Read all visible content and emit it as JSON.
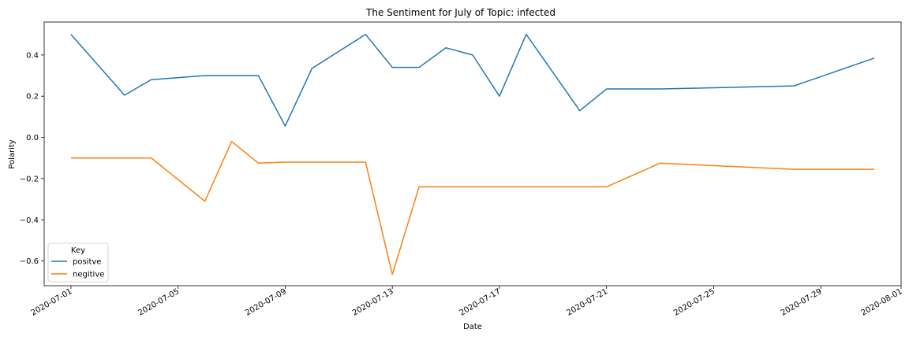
{
  "chart_data": {
    "type": "line",
    "title": "The Sentiment for July of Topic: infected",
    "xlabel": "Date",
    "ylabel": "Polarity",
    "xlim": [
      "2020-06-30",
      "2020-08-01"
    ],
    "ylim": [
      -0.72,
      0.56
    ],
    "x_ticks": [
      "2020-07-01",
      "2020-07-05",
      "2020-07-09",
      "2020-07-13",
      "2020-07-17",
      "2020-07-21",
      "2020-07-25",
      "2020-07-29",
      "2020-08-01"
    ],
    "y_ticks": [
      0.4,
      0.2,
      0.0,
      -0.2,
      -0.4,
      -0.6
    ],
    "y_tick_labels": [
      "0.4",
      "0.2",
      "0.0",
      "−0.2",
      "−0.4",
      "−0.6"
    ],
    "legend": {
      "title": "Key",
      "position": "lower-left"
    },
    "series": [
      {
        "name": "positve",
        "color": "#1f77b4",
        "points": [
          [
            "2020-07-01",
            0.5
          ],
          [
            "2020-07-03",
            0.205
          ],
          [
            "2020-07-04",
            0.28
          ],
          [
            "2020-07-06",
            0.3
          ],
          [
            "2020-07-07",
            0.3
          ],
          [
            "2020-07-08",
            0.3
          ],
          [
            "2020-07-09",
            0.055
          ],
          [
            "2020-07-10",
            0.335
          ],
          [
            "2020-07-12",
            0.5
          ],
          [
            "2020-07-13",
            0.34
          ],
          [
            "2020-07-14",
            0.34
          ],
          [
            "2020-07-15",
            0.435
          ],
          [
            "2020-07-16",
            0.4
          ],
          [
            "2020-07-17",
            0.2
          ],
          [
            "2020-07-18",
            0.5
          ],
          [
            "2020-07-20",
            0.13
          ],
          [
            "2020-07-21",
            0.235
          ],
          [
            "2020-07-23",
            0.235
          ],
          [
            "2020-07-28",
            0.25
          ],
          [
            "2020-07-31",
            0.385
          ]
        ]
      },
      {
        "name": "negitive",
        "color": "#ff7f0e",
        "points": [
          [
            "2020-07-01",
            -0.1
          ],
          [
            "2020-07-04",
            -0.1
          ],
          [
            "2020-07-06",
            -0.31
          ],
          [
            "2020-07-07",
            -0.02
          ],
          [
            "2020-07-08",
            -0.125
          ],
          [
            "2020-07-09",
            -0.12
          ],
          [
            "2020-07-12",
            -0.12
          ],
          [
            "2020-07-13",
            -0.665
          ],
          [
            "2020-07-14",
            -0.24
          ],
          [
            "2020-07-21",
            -0.24
          ],
          [
            "2020-07-23",
            -0.125
          ],
          [
            "2020-07-28",
            -0.155
          ],
          [
            "2020-07-31",
            -0.155
          ]
        ]
      }
    ]
  }
}
